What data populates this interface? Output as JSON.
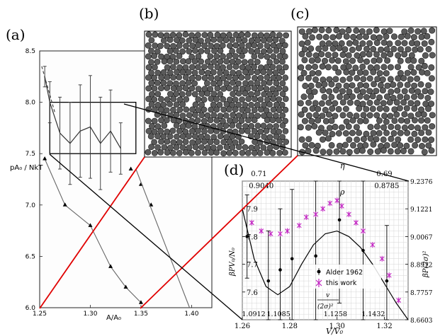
{
  "figure": {
    "panel_labels": [
      "(a)",
      "(b)",
      "(c)",
      "(d)"
    ]
  },
  "colors": {
    "red_line": "#e00000",
    "this_work": "#c020c0",
    "grid": "#cccccc",
    "disk_fill": "#5a5a5a",
    "background": "#ffffff"
  },
  "chart_data": [
    {
      "panel": "(a)",
      "type": "line",
      "title": "",
      "xlabel": "A/A₀",
      "ylabel": "pA₀ / NkT",
      "xlim": [
        1.25,
        1.42
      ],
      "ylim": [
        6.0,
        8.5
      ],
      "x_ticks": [
        "1.25",
        "1.30",
        "1.35",
        "1.40"
      ],
      "y_ticks": [
        "6.0",
        "6.5",
        "7.0",
        "7.5",
        "8.0",
        "8.5"
      ],
      "series": [
        {
          "x": [
            1.255,
            1.26,
            1.27,
            1.28,
            1.29,
            1.3,
            1.31,
            1.32,
            1.33
          ],
          "y": [
            8.25,
            8.0,
            7.7,
            7.6,
            7.72,
            7.76,
            7.6,
            7.72,
            7.55
          ],
          "err": [
            0.1,
            0.2,
            0.35,
            0.4,
            0.45,
            0.5,
            0.45,
            0.4,
            0.25
          ]
        },
        {
          "x": [
            1.255,
            1.275,
            1.3,
            1.32,
            1.335,
            1.35
          ],
          "y": [
            7.45,
            7.0,
            6.8,
            6.4,
            6.2,
            6.05
          ]
        },
        {
          "x": [
            1.34,
            1.35,
            1.36
          ],
          "y": [
            7.35,
            7.2,
            7.0
          ]
        }
      ],
      "inset_box": {
        "x": [
          1.26,
          1.345
        ],
        "y": [
          7.5,
          8.0
        ]
      }
    },
    {
      "panel": "(d)",
      "type": "line",
      "title": "",
      "xlabel": "V/V₀",
      "ylabel": "βPV₀/N₀",
      "y2label": "βP(2σ)²",
      "top_label_eta": "η",
      "top_label_rho": "ρ",
      "v_label_num": "v",
      "v_label_den": "(2σ)²",
      "xlim": [
        1.26,
        1.33
      ],
      "ylim": [
        7.5,
        8.0
      ],
      "x_ticks": [
        "1.26",
        "1.28",
        "1.30",
        "1.32"
      ],
      "y_ticks": [
        "7.6",
        "7.7",
        "7.8",
        "7.9"
      ],
      "y2_ticks": [
        "9.2376",
        "9.1221",
        "9.0067",
        "8.8912",
        "8.7757",
        "8.6603"
      ],
      "eta_ticks": [
        "0.71",
        "0.69"
      ],
      "rho_ticks": [
        "0.9040",
        "0.8785"
      ],
      "v_ticks": [
        "1.0912",
        "1.1085",
        "1.1258",
        "1.1432"
      ],
      "series": [
        {
          "name": "Alder 1962",
          "x": [
            1.262,
            1.271,
            1.276,
            1.281,
            1.291,
            1.301,
            1.311,
            1.321
          ],
          "y": [
            7.8,
            7.64,
            7.68,
            7.72,
            7.73,
            7.86,
            7.75,
            7.64
          ],
          "err": [
            0.15,
            0.18,
            0.22,
            0.25,
            0.28,
            0.3,
            0.25,
            0.2
          ]
        },
        {
          "name": "this work",
          "x": [
            1.264,
            1.268,
            1.272,
            1.276,
            1.279,
            1.284,
            1.287,
            1.291,
            1.294,
            1.297,
            1.3,
            1.302,
            1.305,
            1.308,
            1.311,
            1.315,
            1.319,
            1.322,
            1.326
          ],
          "y": [
            7.85,
            7.82,
            7.81,
            7.81,
            7.82,
            7.84,
            7.87,
            7.88,
            7.9,
            7.92,
            7.93,
            7.91,
            7.88,
            7.85,
            7.82,
            7.77,
            7.72,
            7.66,
            7.57
          ]
        },
        {
          "name": "curve",
          "x": [
            1.26,
            1.265,
            1.27,
            1.275,
            1.28,
            1.285,
            1.29,
            1.295,
            1.3,
            1.305,
            1.31,
            1.315,
            1.32,
            1.325,
            1.33
          ],
          "y": [
            7.9,
            7.72,
            7.62,
            7.59,
            7.62,
            7.7,
            7.77,
            7.81,
            7.82,
            7.8,
            7.76,
            7.7,
            7.63,
            7.56,
            7.5
          ]
        }
      ],
      "legend": [
        "Alder 1962",
        "this work"
      ]
    }
  ]
}
